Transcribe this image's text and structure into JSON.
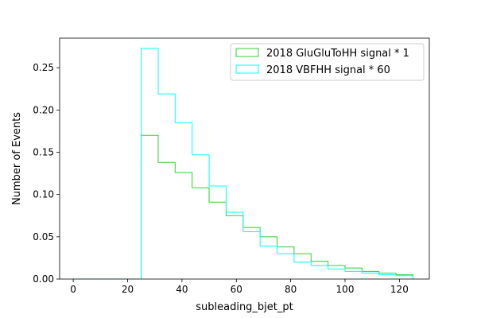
{
  "chart_data": {
    "type": "histogram",
    "xlabel": "subleading_bjet_pt",
    "ylabel": "Number of Events",
    "xlim": [
      -5,
      131
    ],
    "ylim": [
      0,
      0.285
    ],
    "x_ticks": [
      0,
      20,
      40,
      60,
      80,
      100,
      120
    ],
    "x_tick_labels": [
      "0",
      "20",
      "40",
      "60",
      "80",
      "100",
      "120"
    ],
    "y_ticks": [
      0.0,
      0.05,
      0.1,
      0.15,
      0.2,
      0.25
    ],
    "y_tick_labels": [
      "0.00",
      "0.05",
      "0.10",
      "0.15",
      "0.20",
      "0.25"
    ],
    "grid": false,
    "legend_position": "upper right",
    "bin_edges": [
      0,
      6.25,
      12.5,
      18.75,
      25,
      31.25,
      37.5,
      43.75,
      50,
      56.25,
      62.5,
      68.75,
      75,
      81.25,
      87.5,
      93.75,
      100,
      106.25,
      112.5,
      118.75,
      125
    ],
    "series": [
      {
        "name": "2018 GluGluToHH signal * 1",
        "color": "#32cd32",
        "values": [
          0,
          0,
          0,
          0,
          0.17,
          0.138,
          0.126,
          0.108,
          0.091,
          0.075,
          0.061,
          0.05,
          0.038,
          0.03,
          0.021,
          0.016,
          0.013,
          0.009,
          0.007,
          0.005
        ]
      },
      {
        "name": "2018 VBFHH signal * 60",
        "color": "#00ffff",
        "values": [
          0,
          0,
          0,
          0,
          0.273,
          0.219,
          0.185,
          0.147,
          0.11,
          0.079,
          0.056,
          0.039,
          0.03,
          0.02,
          0.016,
          0.012,
          0.009,
          0.007,
          0.005,
          0.004
        ]
      }
    ]
  }
}
